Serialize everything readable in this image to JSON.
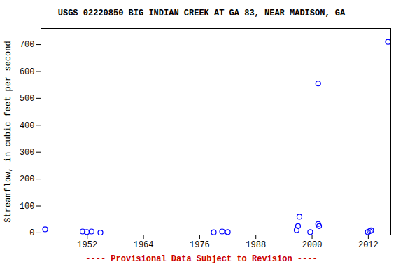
{
  "chart_data": {
    "type": "scatter",
    "title": "USGS 02220850 BIG INDIAN CREEK AT GA 83, NEAR MADISON, GA",
    "y_label": "Streamflow, in cubic feet per second",
    "caption": "---- Provisional Data Subject to Revision ----",
    "x": [
      1943.0,
      1951.0,
      1951.9,
      1952.9,
      1954.8,
      1979.0,
      1980.8,
      1982.0,
      1996.7,
      1997.0,
      1997.3,
      1999.6,
      2001.3,
      2001.3,
      2001.5,
      2011.9,
      2012.3,
      2012.6,
      2016.2
    ],
    "values": [
      13,
      5,
      3,
      5,
      1,
      2,
      5,
      3,
      10,
      25,
      60,
      3,
      555,
      33,
      25,
      3,
      6,
      9,
      710
    ],
    "color": "#0000ff",
    "marker": "open_circle",
    "xlim": [
      1942.1,
      2016.8
    ],
    "xticks": [
      1952,
      1964,
      1976,
      1988,
      2000,
      2012
    ],
    "ylim": [
      -8,
      760
    ],
    "yticks": [
      0,
      100,
      200,
      300,
      400,
      500,
      600,
      700
    ],
    "grid": false
  }
}
